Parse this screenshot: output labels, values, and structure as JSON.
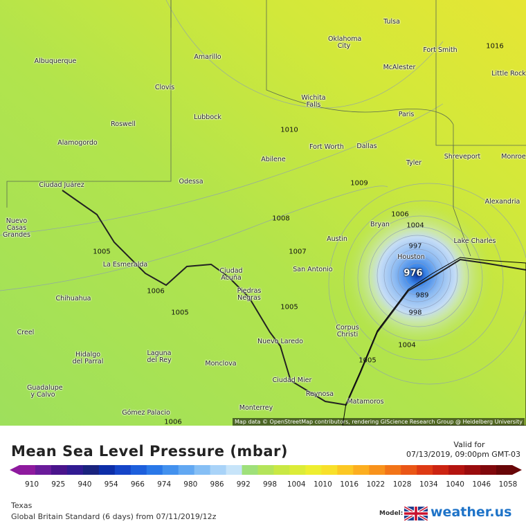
{
  "map": {
    "cities": [
      "Albuquerque",
      "Clovis",
      "Roswell",
      "Alamogordo",
      "Amarillo",
      "Lubbock",
      "Odessa",
      "Abilene",
      "Ciudad Juárez",
      "Nuevo Casas Grandes",
      "La Esmeralda",
      "Chihuahua",
      "Creel",
      "Hidalgo del Parral",
      "Guadalupe y Calvo",
      "Laguna del Rey",
      "Monclova",
      "Gómez Palacio",
      "Monterrey",
      "Nuevo Laredo",
      "Ciudad Mier",
      "Reynosa",
      "Matamoros",
      "Ciudad Acuña",
      "Piedras Negras",
      "San Antonio",
      "Austin",
      "Corpus Christi",
      "Bryan",
      "Houston",
      "Lake Charles",
      "Alexandria",
      "Shreveport",
      "Monroe",
      "Tyler",
      "Dallas",
      "Fort Worth",
      "Paris",
      "Wichita Falls",
      "Oklahoma City",
      "Tulsa",
      "McAlester",
      "Fort Smith",
      "Little Rock"
    ],
    "isobar_labels": [
      1016,
      1010,
      1009,
      1008,
      1007,
      1006,
      1004,
      1005,
      1006,
      1005,
      1005,
      997,
      976,
      989,
      998,
      1004,
      1005,
      1006
    ],
    "attribution": "Map data © OpenStreetMap contributors, rendering GIScience Research Group @ Heidelberg University"
  },
  "legend": {
    "title": "Mean Sea Level Pressure (mbar)",
    "valid_label": "Valid for",
    "valid_time": "07/13/2019, 09:00pm GMT-03",
    "colorbar": {
      "colors": [
        "#8e1a9e",
        "#6a1b9a",
        "#4a148c",
        "#311b92",
        "#1a237e",
        "#0d2ea8",
        "#1545c8",
        "#1d5fdc",
        "#2a78e8",
        "#4391ee",
        "#62a8f2",
        "#86bff5",
        "#a9d3f8",
        "#c7e4f9",
        "#9fe07a",
        "#b4e45a",
        "#c9e844",
        "#dcec38",
        "#eeee30",
        "#f8e02a",
        "#fcc824",
        "#fcae20",
        "#f8921c",
        "#f27418",
        "#ea5616",
        "#de3a14",
        "#cc2412",
        "#b41410",
        "#9a0c0e",
        "#80080c",
        "#680608"
      ],
      "ticks": [
        910,
        925,
        940,
        954,
        966,
        974,
        980,
        986,
        992,
        998,
        1004,
        1010,
        1016,
        1022,
        1028,
        1034,
        1040,
        1046,
        1058
      ]
    },
    "region": "Texas",
    "model_run": "Global Britain Standard (6 days) from 07/11/2019/12z",
    "model_label": "Model:",
    "brand": "weather.us"
  }
}
